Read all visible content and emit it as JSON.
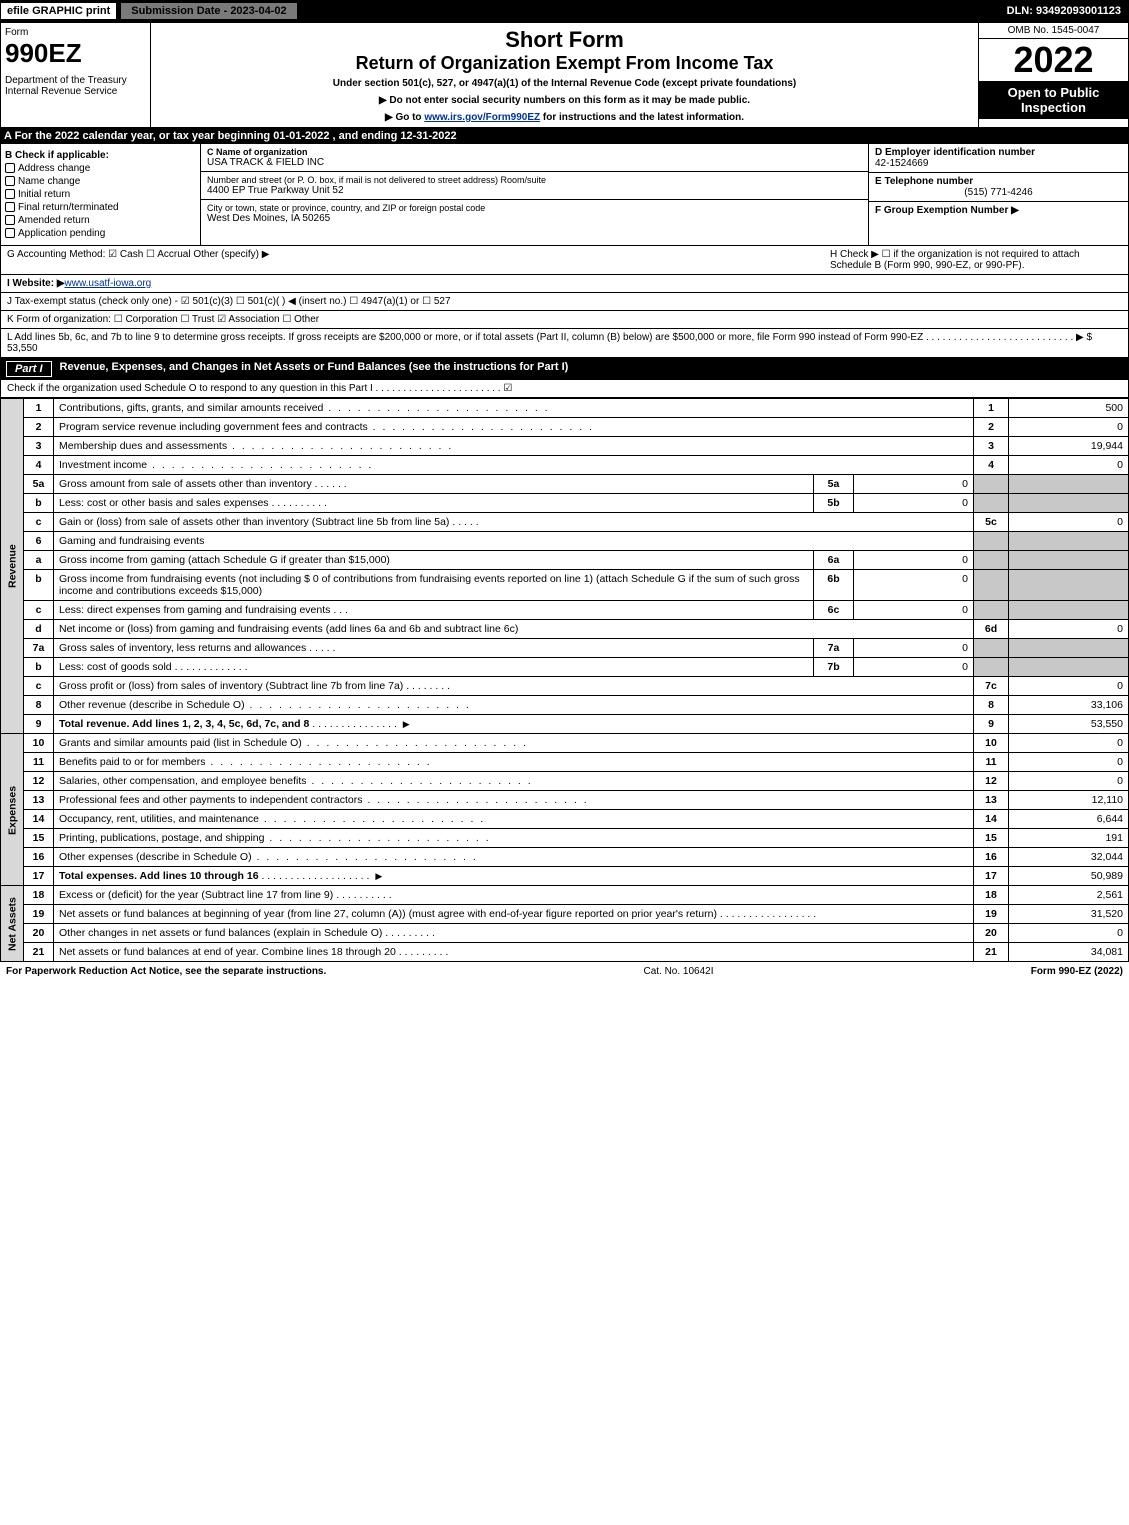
{
  "topbar": {
    "efile": "efile GRAPHIC print",
    "submission": "Submission Date - 2023-04-02",
    "dln": "DLN: 93492093001123"
  },
  "header": {
    "form_label": "Form",
    "form_number": "990EZ",
    "dept": "Department of the Treasury\nInternal Revenue Service",
    "title1": "Short Form",
    "title2": "Return of Organization Exempt From Income Tax",
    "subtitle": "Under section 501(c), 527, or 4947(a)(1) of the Internal Revenue Code (except private foundations)",
    "note1": "▶ Do not enter social security numbers on this form as it may be made public.",
    "note2_pre": "▶ Go to ",
    "note2_link": "www.irs.gov/Form990EZ",
    "note2_post": " for instructions and the latest information.",
    "omb": "OMB No. 1545-0047",
    "year": "2022",
    "badge": "Open to Public Inspection"
  },
  "lineA": "A  For the 2022 calendar year, or tax year beginning 01-01-2022 , and ending 12-31-2022",
  "sectionB": {
    "title": "B  Check if applicable:",
    "items": [
      "Address change",
      "Name change",
      "Initial return",
      "Final return/terminated",
      "Amended return",
      "Application pending"
    ]
  },
  "sectionC": {
    "name_label": "C Name of organization",
    "name": "USA TRACK & FIELD INC",
    "street_label": "Number and street (or P. O. box, if mail is not delivered to street address)     Room/suite",
    "street": "4400 EP True Parkway Unit 52",
    "city_label": "City or town, state or province, country, and ZIP or foreign postal code",
    "city": "West Des Moines, IA  50265"
  },
  "sectionD": {
    "d_label": "D Employer identification number",
    "d_val": "42-1524669",
    "e_label": "E Telephone number",
    "e_val": "(515) 771-4246",
    "f_label": "F Group Exemption Number  ▶"
  },
  "lineG": "G Accounting Method:   ☑ Cash  ☐ Accrual   Other (specify) ▶",
  "lineH": "H  Check ▶  ☐  if the organization is not required to attach Schedule B (Form 990, 990-EZ, or 990-PF).",
  "lineI_pre": "I Website: ▶",
  "lineI_link": "www.usatf-iowa.org",
  "lineJ": "J Tax-exempt status (check only one) -  ☑ 501(c)(3)  ☐ 501(c)(  ) ◀ (insert no.)  ☐ 4947(a)(1) or  ☐ 527",
  "lineK": "K Form of organization:   ☐ Corporation   ☐ Trust   ☑ Association   ☐ Other",
  "lineL": "L Add lines 5b, 6c, and 7b to line 9 to determine gross receipts. If gross receipts are $200,000 or more, or if total assets (Part II, column (B) below) are $500,000 or more, file Form 990 instead of Form 990-EZ  . . . . . . . . . . . . . . . . . . . . . . . . . . .  ▶ $ 53,550",
  "partI": {
    "title": "Revenue, Expenses, and Changes in Net Assets or Fund Balances (see the instructions for Part I)",
    "check": "Check if the organization used Schedule O to respond to any question in this Part I . . . . . . . . . . . . . . . . . . . . . . .  ☑"
  },
  "vlabels": {
    "rev": "Revenue",
    "exp": "Expenses",
    "net": "Net Assets"
  },
  "rows": {
    "1": {
      "d": "Contributions, gifts, grants, and similar amounts received",
      "v": "500"
    },
    "2": {
      "d": "Program service revenue including government fees and contracts",
      "v": "0"
    },
    "3": {
      "d": "Membership dues and assessments",
      "v": "19,944"
    },
    "4": {
      "d": "Investment income",
      "v": "0"
    },
    "5a": {
      "d": "Gross amount from sale of assets other than inventory",
      "sv": "0"
    },
    "5b": {
      "d": "Less: cost or other basis and sales expenses",
      "sv": "0"
    },
    "5c": {
      "d": "Gain or (loss) from sale of assets other than inventory (Subtract line 5b from line 5a)",
      "v": "0"
    },
    "6": {
      "d": "Gaming and fundraising events"
    },
    "6a": {
      "d": "Gross income from gaming (attach Schedule G if greater than $15,000)",
      "sv": "0"
    },
    "6b": {
      "d": "Gross income from fundraising events (not including $ 0   of contributions from fundraising events reported on line 1) (attach Schedule G if the sum of such gross income and contributions exceeds $15,000)",
      "sv": "0"
    },
    "6c": {
      "d": "Less: direct expenses from gaming and fundraising events",
      "sv": "0"
    },
    "6d": {
      "d": "Net income or (loss) from gaming and fundraising events (add lines 6a and 6b and subtract line 6c)",
      "v": "0"
    },
    "7a": {
      "d": "Gross sales of inventory, less returns and allowances",
      "sv": "0"
    },
    "7b": {
      "d": "Less: cost of goods sold",
      "sv": "0"
    },
    "7c": {
      "d": "Gross profit or (loss) from sales of inventory (Subtract line 7b from line 7a)",
      "v": "0"
    },
    "8": {
      "d": "Other revenue (describe in Schedule O)",
      "v": "33,106"
    },
    "9": {
      "d": "Total revenue. Add lines 1, 2, 3, 4, 5c, 6d, 7c, and 8",
      "v": "53,550",
      "bold": true
    },
    "10": {
      "d": "Grants and similar amounts paid (list in Schedule O)",
      "v": "0"
    },
    "11": {
      "d": "Benefits paid to or for members",
      "v": "0"
    },
    "12": {
      "d": "Salaries, other compensation, and employee benefits",
      "v": "0"
    },
    "13": {
      "d": "Professional fees and other payments to independent contractors",
      "v": "12,110"
    },
    "14": {
      "d": "Occupancy, rent, utilities, and maintenance",
      "v": "6,644"
    },
    "15": {
      "d": "Printing, publications, postage, and shipping",
      "v": "191"
    },
    "16": {
      "d": "Other expenses (describe in Schedule O)",
      "v": "32,044"
    },
    "17": {
      "d": "Total expenses. Add lines 10 through 16",
      "v": "50,989",
      "bold": true
    },
    "18": {
      "d": "Excess or (deficit) for the year (Subtract line 17 from line 9)",
      "v": "2,561"
    },
    "19": {
      "d": "Net assets or fund balances at beginning of year (from line 27, column (A)) (must agree with end-of-year figure reported on prior year's return)",
      "v": "31,520"
    },
    "20": {
      "d": "Other changes in net assets or fund balances (explain in Schedule O)",
      "v": "0"
    },
    "21": {
      "d": "Net assets or fund balances at end of year. Combine lines 18 through 20",
      "v": "34,081"
    }
  },
  "footer": {
    "left": "For Paperwork Reduction Act Notice, see the separate instructions.",
    "mid": "Cat. No. 10642I",
    "right": "Form 990-EZ (2022)"
  },
  "colors": {
    "black": "#000000",
    "white": "#ffffff",
    "gray_shade": "#c8c8c8",
    "vlabel_bg": "#d8d8d8",
    "topbar_mid": "#7a7a7a",
    "link": "#003399"
  }
}
